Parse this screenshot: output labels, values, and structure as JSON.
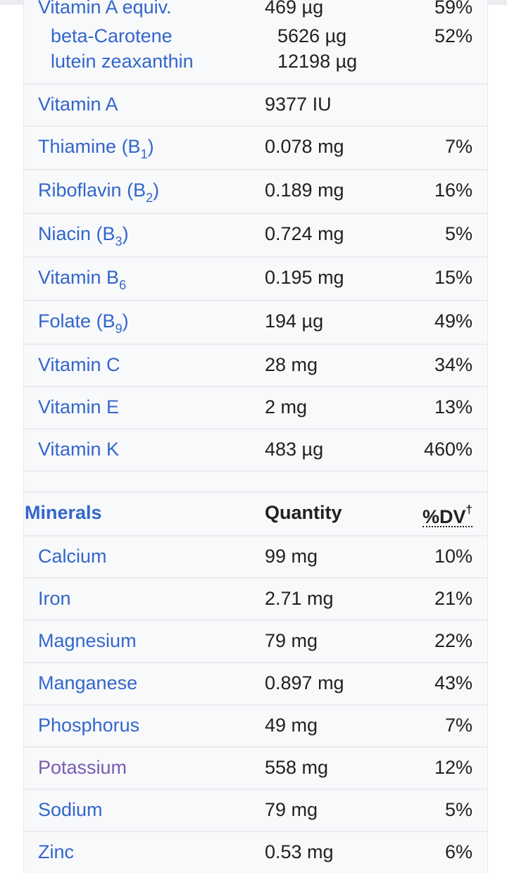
{
  "vitamin_a_equiv": {
    "name": "Vitamin A equiv.",
    "quantity": "469 µg",
    "dv": "59%",
    "sub_items": [
      {
        "name": "beta-Carotene",
        "quantity": "5626 µg",
        "dv": "52%"
      },
      {
        "name": "lutein zeaxanthin",
        "quantity": "12198 µg",
        "dv": ""
      }
    ]
  },
  "vitamins": [
    {
      "name": "Vitamin A",
      "quantity": "9377 IU",
      "dv": ""
    },
    {
      "name": "Thiamine",
      "sub": "1",
      "quantity": "0.078 mg",
      "dv": "7%"
    },
    {
      "name": "Riboflavin",
      "sub": "2",
      "quantity": "0.189 mg",
      "dv": "16%"
    },
    {
      "name": "Niacin",
      "sub": "3",
      "quantity": "0.724 mg",
      "dv": "5%"
    },
    {
      "name": "Vitamin B",
      "sub": "6",
      "quantity": "0.195 mg",
      "dv": "15%"
    },
    {
      "name": "Folate",
      "sub": "9",
      "quantity": "194 µg",
      "dv": "49%"
    },
    {
      "name": "Vitamin C",
      "quantity": "28 mg",
      "dv": "34%"
    },
    {
      "name": "Vitamin E",
      "quantity": "2 mg",
      "dv": "13%"
    },
    {
      "name": "Vitamin K",
      "quantity": "483 µg",
      "dv": "460%"
    }
  ],
  "minerals_header": {
    "title": "Minerals",
    "quantity": "Quantity",
    "dv": "%DV",
    "dv_mark": "†"
  },
  "minerals": [
    {
      "name": "Calcium",
      "quantity": "99 mg",
      "dv": "10%"
    },
    {
      "name": "Iron",
      "quantity": "2.71 mg",
      "dv": "21%"
    },
    {
      "name": "Magnesium",
      "quantity": "79 mg",
      "dv": "22%"
    },
    {
      "name": "Manganese",
      "quantity": "0.897 mg",
      "dv": "43%"
    },
    {
      "name": "Phosphorus",
      "quantity": "49 mg",
      "dv": "7%"
    },
    {
      "name": "Potassium",
      "quantity": "558 mg",
      "dv": "12%",
      "visited": true
    },
    {
      "name": "Sodium",
      "quantity": "79 mg",
      "dv": "5%"
    },
    {
      "name": "Zinc",
      "quantity": "0.53 mg",
      "dv": "6%"
    }
  ],
  "colors": {
    "link": "#3366cc",
    "visited_link": "#795cb2",
    "text": "#202122",
    "table_bg": "#f8f9fa",
    "row_border": "#eaecf0"
  }
}
